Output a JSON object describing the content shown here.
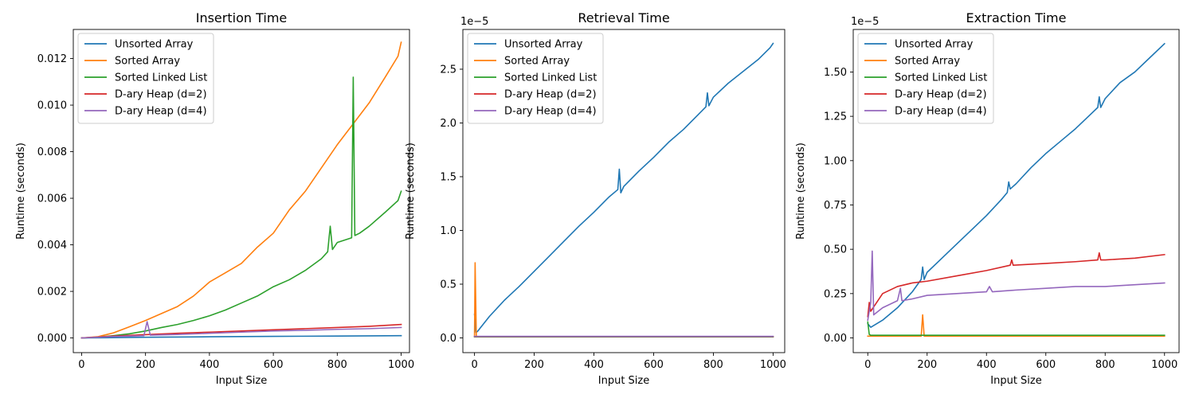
{
  "colors": {
    "Unsorted Array": "#1f77b4",
    "Sorted Array": "#ff7f0e",
    "Sorted Linked List": "#2ca02c",
    "D-ary Heap (d=2)": "#d62728",
    "D-ary Heap (d=4)": "#9467bd"
  },
  "chart_data": [
    {
      "type": "line",
      "title": "Insertion Time",
      "xlabel": "Input Size",
      "ylabel": "Runtime (seconds)",
      "xlim": [
        -26,
        1026
      ],
      "ylim": [
        -0.00063,
        0.01325
      ],
      "x_ticks": [
        0,
        200,
        400,
        600,
        800,
        1000
      ],
      "x_tick_labels": [
        "0",
        "200",
        "400",
        "600",
        "800",
        "1000"
      ],
      "y_ticks": [
        0,
        0.002,
        0.004,
        0.006,
        0.008,
        0.01,
        0.012
      ],
      "y_tick_labels": [
        "0.000",
        "0.002",
        "0.004",
        "0.006",
        "0.008",
        "0.010",
        "0.012"
      ],
      "y_offset_label": "",
      "legend": "top-left",
      "grid": false,
      "series": [
        {
          "name": "Unsorted Array",
          "x": [
            0,
            200,
            400,
            600,
            800,
            1000
          ],
          "y": [
            0,
            3e-05,
            5e-05,
            7e-05,
            8e-05,
            0.0001
          ]
        },
        {
          "name": "Sorted Array",
          "x": [
            0,
            50,
            100,
            150,
            200,
            250,
            300,
            350,
            400,
            450,
            500,
            550,
            600,
            650,
            700,
            750,
            800,
            850,
            900,
            950,
            990,
            1000
          ],
          "y": [
            0,
            5e-05,
            0.00022,
            0.00048,
            0.00075,
            0.00105,
            0.00135,
            0.0018,
            0.0024,
            0.0028,
            0.0032,
            0.0039,
            0.0045,
            0.0055,
            0.0063,
            0.0073,
            0.0083,
            0.0092,
            0.0101,
            0.0112,
            0.0121,
            0.0127
          ]
        },
        {
          "name": "Sorted Linked List",
          "x": [
            0,
            50,
            100,
            150,
            200,
            250,
            300,
            350,
            400,
            450,
            500,
            550,
            600,
            650,
            700,
            750,
            770,
            778,
            785,
            800,
            845,
            850,
            855,
            870,
            900,
            950,
            990,
            1000
          ],
          "y": [
            0,
            3e-05,
            0.0001,
            0.00018,
            0.0003,
            0.00045,
            0.00058,
            0.00075,
            0.00095,
            0.0012,
            0.0015,
            0.0018,
            0.0022,
            0.0025,
            0.0029,
            0.0034,
            0.0037,
            0.0048,
            0.0038,
            0.0041,
            0.0043,
            0.0112,
            0.0044,
            0.0045,
            0.0048,
            0.0054,
            0.0059,
            0.0063
          ]
        },
        {
          "name": "D-ary Heap (d=2)",
          "x": [
            0,
            100,
            200,
            300,
            400,
            500,
            600,
            700,
            800,
            900,
            1000
          ],
          "y": [
            0,
            8e-05,
            0.00014,
            0.0002,
            0.00025,
            0.0003,
            0.00035,
            0.0004,
            0.00045,
            0.0005,
            0.00058
          ]
        },
        {
          "name": "D-ary Heap (d=4)",
          "x": [
            0,
            100,
            195,
            205,
            215,
            300,
            400,
            500,
            600,
            700,
            800,
            900,
            1000
          ],
          "y": [
            0,
            6e-05,
            0.0001,
            0.0007,
            0.00012,
            0.00015,
            0.0002,
            0.00025,
            0.0003,
            0.00033,
            0.00037,
            0.0004,
            0.00045
          ]
        }
      ]
    },
    {
      "type": "line",
      "title": "Retrieval Time",
      "xlabel": "Input Size",
      "ylabel": "Runtime (seconds)",
      "xlim": [
        -39,
        1039
      ],
      "ylim": [
        -0.137,
        2.87
      ],
      "x_ticks": [
        0,
        200,
        400,
        600,
        800,
        1000
      ],
      "x_tick_labels": [
        "0",
        "200",
        "400",
        "600",
        "800",
        "1000"
      ],
      "y_ticks": [
        0,
        0.5,
        1.0,
        1.5,
        2.0,
        2.5
      ],
      "y_tick_labels": [
        "0.0",
        "0.5",
        "1.0",
        "1.5",
        "2.0",
        "2.5"
      ],
      "y_offset_label": "1e−5",
      "legend": "top-left",
      "grid": false,
      "series": [
        {
          "name": "Unsorted Array",
          "x": [
            0,
            5,
            10,
            50,
            100,
            150,
            200,
            250,
            300,
            350,
            400,
            450,
            480,
            485,
            490,
            500,
            550,
            600,
            650,
            700,
            750,
            775,
            780,
            785,
            800,
            850,
            900,
            950,
            990,
            1000
          ],
          "y": [
            0.22,
            0.05,
            0.06,
            0.2,
            0.35,
            0.48,
            0.62,
            0.76,
            0.9,
            1.04,
            1.17,
            1.31,
            1.38,
            1.57,
            1.35,
            1.41,
            1.55,
            1.68,
            1.82,
            1.94,
            2.08,
            2.15,
            2.28,
            2.16,
            2.24,
            2.37,
            2.48,
            2.59,
            2.7,
            2.74
          ]
        },
        {
          "name": "Sorted Array",
          "x": [
            0,
            2,
            6,
            10,
            1000
          ],
          "y": [
            0.02,
            0.7,
            0.02,
            0.01,
            0.01
          ]
        },
        {
          "name": "Sorted Linked List",
          "x": [
            0,
            10,
            1000
          ],
          "y": [
            0.01,
            0.01,
            0.01
          ]
        },
        {
          "name": "D-ary Heap (d=2)",
          "x": [
            0,
            10,
            1000
          ],
          "y": [
            0.012,
            0.012,
            0.012
          ]
        },
        {
          "name": "D-ary Heap (d=4)",
          "x": [
            0,
            10,
            1000
          ],
          "y": [
            0.014,
            0.014,
            0.014
          ]
        }
      ]
    },
    {
      "type": "line",
      "title": "Extraction Time",
      "xlabel": "Input Size",
      "ylabel": "Runtime (seconds)",
      "xlim": [
        -49,
        1049
      ],
      "ylim": [
        -0.083,
        1.74
      ],
      "x_ticks": [
        0,
        200,
        400,
        600,
        800,
        1000
      ],
      "x_tick_labels": [
        "0",
        "200",
        "400",
        "600",
        "800",
        "1000"
      ],
      "y_ticks": [
        0,
        0.25,
        0.5,
        0.75,
        1.0,
        1.25,
        1.5
      ],
      "y_tick_labels": [
        "0.00",
        "0.25",
        "0.50",
        "0.75",
        "1.00",
        "1.25",
        "1.50"
      ],
      "y_offset_label": "1e−5",
      "legend": "top-left",
      "grid": false,
      "series": [
        {
          "name": "Unsorted Array",
          "x": [
            0,
            10,
            50,
            100,
            150,
            180,
            185,
            190,
            200,
            250,
            300,
            350,
            400,
            450,
            470,
            475,
            480,
            500,
            550,
            600,
            650,
            700,
            750,
            775,
            780,
            785,
            800,
            850,
            900,
            950,
            1000
          ],
          "y": [
            0.08,
            0.06,
            0.1,
            0.17,
            0.26,
            0.33,
            0.4,
            0.33,
            0.37,
            0.45,
            0.53,
            0.61,
            0.69,
            0.78,
            0.82,
            0.88,
            0.84,
            0.87,
            0.96,
            1.04,
            1.11,
            1.18,
            1.26,
            1.3,
            1.36,
            1.3,
            1.35,
            1.44,
            1.5,
            1.58,
            1.66
          ]
        },
        {
          "name": "Sorted Array",
          "x": [
            0,
            180,
            185,
            190,
            200,
            1000
          ],
          "y": [
            0.01,
            0.01,
            0.13,
            0.01,
            0.01,
            0.01
          ]
        },
        {
          "name": "Sorted Linked List",
          "x": [
            0,
            5,
            10,
            1000
          ],
          "y": [
            0.09,
            0.02,
            0.015,
            0.015
          ]
        },
        {
          "name": "D-ary Heap (d=2)",
          "x": [
            0,
            5,
            10,
            50,
            100,
            150,
            200,
            300,
            400,
            480,
            485,
            490,
            600,
            700,
            775,
            780,
            785,
            800,
            900,
            1000
          ],
          "y": [
            0.12,
            0.2,
            0.15,
            0.25,
            0.29,
            0.31,
            0.32,
            0.35,
            0.38,
            0.41,
            0.44,
            0.41,
            0.42,
            0.43,
            0.44,
            0.48,
            0.44,
            0.44,
            0.45,
            0.47
          ]
        },
        {
          "name": "D-ary Heap (d=4)",
          "x": [
            0,
            10,
            15,
            20,
            50,
            100,
            110,
            115,
            150,
            200,
            300,
            400,
            410,
            420,
            500,
            600,
            700,
            800,
            900,
            1000
          ],
          "y": [
            0.1,
            0.2,
            0.49,
            0.13,
            0.17,
            0.21,
            0.28,
            0.21,
            0.22,
            0.24,
            0.25,
            0.26,
            0.29,
            0.26,
            0.27,
            0.28,
            0.29,
            0.29,
            0.3,
            0.31
          ]
        }
      ]
    }
  ]
}
